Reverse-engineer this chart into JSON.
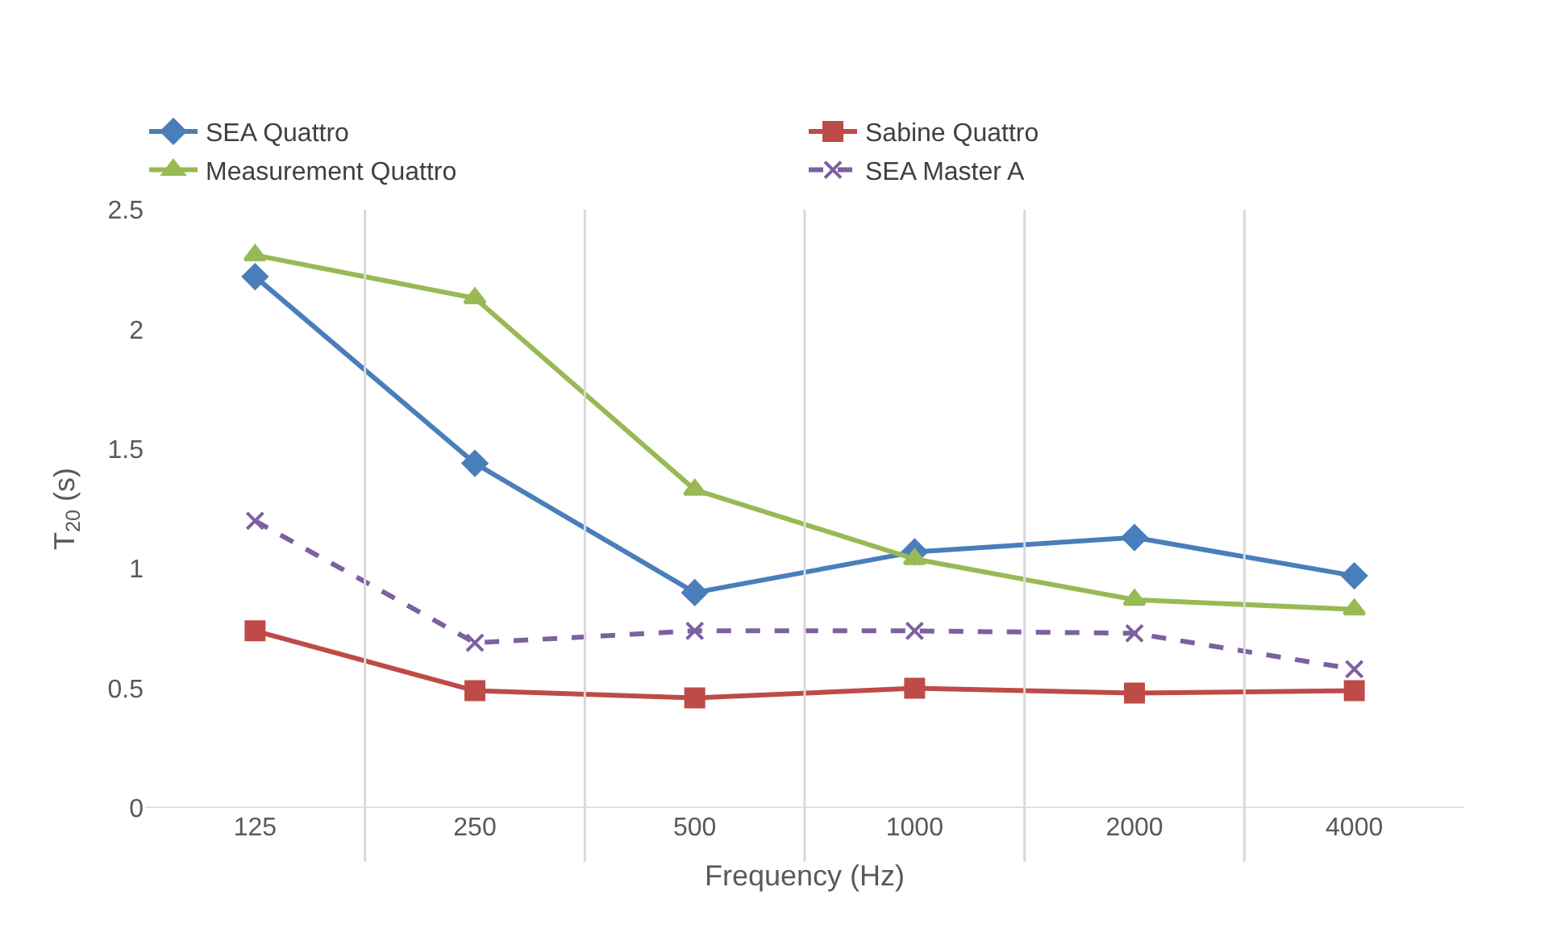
{
  "chart_data": {
    "type": "line",
    "xlabel": "Frequency (Hz)",
    "ylabel": "T$_{20}$ (s)",
    "categories": [
      "125",
      "250",
      "500",
      "1000",
      "2000",
      "4000"
    ],
    "series": [
      {
        "name": "SEA Quattro",
        "color": "#4a7ebb",
        "marker": "diamond",
        "line_style": "solid",
        "values": [
          2.22,
          1.44,
          0.9,
          1.07,
          1.13,
          0.97
        ]
      },
      {
        "name": "Sabine Quattro",
        "color": "#be4b48",
        "marker": "square",
        "line_style": "solid",
        "values": [
          0.74,
          0.49,
          0.46,
          0.5,
          0.48,
          0.49
        ]
      },
      {
        "name": "Measurement Quattro",
        "color": "#98b954",
        "marker": "triangle",
        "line_style": "solid",
        "values": [
          2.31,
          2.13,
          1.33,
          1.04,
          0.87,
          0.83
        ]
      },
      {
        "name": "SEA Master A",
        "color": "#7d60a0",
        "marker": "cross",
        "line_style": "dashed",
        "values": [
          1.2,
          0.69,
          0.74,
          0.74,
          0.73,
          0.58
        ]
      }
    ],
    "ylim": [
      0,
      2.5
    ],
    "yticks": [
      0,
      0.5,
      1,
      1.5,
      2,
      2.5
    ],
    "grid": "x",
    "legend": "top"
  }
}
